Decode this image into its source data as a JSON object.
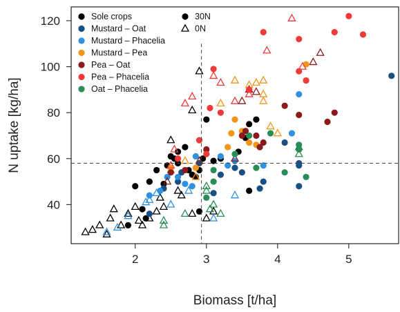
{
  "chart_data": {
    "type": "scatter",
    "title": "",
    "xlabel": "Biomass [t/ha]",
    "ylabel": "N uptake [kg/ha]",
    "xlim": [
      1.1,
      5.7
    ],
    "ylim": [
      23,
      126
    ],
    "xticks": [
      2,
      3,
      4,
      5
    ],
    "yticks": [
      40,
      60,
      80,
      100,
      120
    ],
    "grid": false,
    "legend_position": "top-left",
    "reference_lines": {
      "x": 2.93,
      "y": 58,
      "style": "dashed"
    },
    "marker_legend": [
      {
        "name": "30N",
        "marker": "filled-circle"
      },
      {
        "name": "0N",
        "marker": "open-triangle"
      }
    ],
    "series": [
      {
        "name": "Sole crops",
        "color": "#000000",
        "points_30N": [
          [
            2,
            48
          ],
          [
            2.3,
            55
          ],
          [
            2.4,
            49
          ],
          [
            2.45,
            57
          ],
          [
            2.5,
            61
          ],
          [
            2.55,
            60
          ],
          [
            2.6,
            63
          ],
          [
            2.7,
            65
          ],
          [
            2.75,
            55
          ],
          [
            2.8,
            53
          ],
          [
            2.85,
            52
          ],
          [
            2.9,
            55
          ],
          [
            2.95,
            60
          ],
          [
            3,
            77
          ],
          [
            3.1,
            59
          ],
          [
            3.2,
            60
          ],
          [
            3.45,
            63
          ],
          [
            3.55,
            69
          ],
          [
            3.6,
            75
          ],
          [
            3.7,
            77
          ],
          [
            2.2,
            50
          ],
          [
            2.6,
            58
          ],
          [
            2.9,
            37
          ],
          [
            3.6,
            46
          ],
          [
            1.9,
            31
          ],
          [
            2.1,
            38
          ],
          [
            2.15,
            34
          ]
        ],
        "points_0N": [
          [
            1.3,
            28
          ],
          [
            1.4,
            29
          ],
          [
            1.5,
            31
          ],
          [
            1.6,
            27
          ],
          [
            1.65,
            34
          ],
          [
            1.7,
            38
          ],
          [
            1.8,
            31
          ],
          [
            1.9,
            36
          ],
          [
            2,
            39
          ],
          [
            2.05,
            33
          ],
          [
            2.1,
            31
          ],
          [
            2.2,
            34
          ],
          [
            2.3,
            37
          ],
          [
            2.35,
            43
          ],
          [
            2.4,
            39
          ],
          [
            2.5,
            68
          ],
          [
            2.6,
            46
          ],
          [
            2.65,
            44
          ],
          [
            2.8,
            36
          ],
          [
            2.8,
            81
          ],
          [
            2.9,
            98
          ],
          [
            3,
            34
          ],
          [
            3.1,
            37
          ]
        ]
      },
      {
        "name": "Mustard – Oat",
        "color": "#1a4f85",
        "points_30N": [
          [
            2.2,
            36
          ],
          [
            2.4,
            47
          ],
          [
            2.6,
            50
          ],
          [
            2.9,
            58
          ],
          [
            3.1,
            45
          ],
          [
            3.2,
            53
          ],
          [
            3.4,
            56
          ],
          [
            3.75,
            47
          ],
          [
            3.8,
            50
          ],
          [
            4.1,
            67
          ],
          [
            4.3,
            57
          ],
          [
            4.3,
            58
          ],
          [
            4.3,
            48
          ],
          [
            5.6,
            96
          ],
          [
            2.65,
            54
          ],
          [
            3.5,
            54
          ]
        ],
        "points_0N": []
      },
      {
        "name": "Mustard – Phacelia",
        "color": "#2f92e0",
        "points_30N": [
          [
            2.2,
            44
          ],
          [
            2.35,
            46
          ],
          [
            2.45,
            52
          ],
          [
            2.6,
            52
          ],
          [
            2.7,
            49
          ],
          [
            2.8,
            48
          ],
          [
            2.85,
            61
          ],
          [
            3.2,
            61
          ],
          [
            3.3,
            57
          ],
          [
            3.4,
            59
          ],
          [
            3.8,
            57
          ],
          [
            4.2,
            71
          ],
          [
            4.3,
            88
          ]
        ],
        "points_0N": [
          [
            1.6,
            28
          ],
          [
            1.75,
            30
          ],
          [
            1.9,
            35
          ],
          [
            2.15,
            41
          ],
          [
            2.2,
            42
          ],
          [
            2.3,
            45
          ],
          [
            2.5,
            40
          ],
          [
            2.75,
            46
          ],
          [
            3.1,
            34
          ],
          [
            3.4,
            44
          ]
        ]
      },
      {
        "name": "Mustard – Pea",
        "color": "#f39519",
        "points_30N": [
          [
            2.5,
            56
          ],
          [
            2.85,
            56
          ],
          [
            3.3,
            65
          ],
          [
            3.35,
            71
          ],
          [
            3.4,
            77
          ],
          [
            3.5,
            72
          ],
          [
            3.6,
            67
          ],
          [
            3.7,
            66
          ],
          [
            4.4,
            101
          ]
        ],
        "points_0N": [
          [
            2.5,
            55
          ],
          [
            2.7,
            59
          ],
          [
            2.85,
            52
          ],
          [
            3.2,
            84
          ],
          [
            3.4,
            94
          ],
          [
            3.6,
            92
          ],
          [
            3.7,
            93
          ],
          [
            3.8,
            88
          ],
          [
            3.8,
            94
          ],
          [
            3.8,
            85
          ],
          [
            3.9,
            74
          ],
          [
            4,
            71
          ]
        ]
      },
      {
        "name": "Pea – Oat",
        "color": "#8b1a1a",
        "points_30N": [
          [
            2.5,
            54
          ],
          [
            2.7,
            55
          ],
          [
            3,
            64
          ],
          [
            3.5,
            70
          ],
          [
            3.7,
            70
          ],
          [
            3.75,
            65
          ],
          [
            3.8,
            67
          ],
          [
            4.1,
            83
          ],
          [
            4.3,
            79
          ],
          [
            4.7,
            76
          ],
          [
            4.8,
            80
          ],
          [
            3.55,
            72
          ]
        ],
        "points_0N": [
          [
            2.45,
            50
          ],
          [
            2.9,
            59
          ],
          [
            3.4,
            60
          ],
          [
            3.5,
            85
          ],
          [
            3.6,
            90
          ],
          [
            3.7,
            89
          ],
          [
            4.5,
            102
          ],
          [
            4.6,
            106
          ]
        ]
      },
      {
        "name": "Pea – Phacelia",
        "color": "#f03a3a",
        "points_30N": [
          [
            2.6,
            60
          ],
          [
            2.9,
            68
          ],
          [
            3,
            62
          ],
          [
            3.1,
            99
          ],
          [
            3.2,
            80
          ],
          [
            3.6,
            90
          ],
          [
            3.8,
            115
          ],
          [
            4.3,
            112
          ],
          [
            4.3,
            98
          ],
          [
            4.4,
            94
          ],
          [
            4.8,
            115
          ],
          [
            5,
            122
          ],
          [
            5.2,
            114
          ],
          [
            3.05,
            82
          ]
        ],
        "points_0N": [
          [
            2.5,
            57
          ],
          [
            2.7,
            84
          ],
          [
            2.8,
            87
          ],
          [
            3.1,
            96
          ],
          [
            3.2,
            93
          ],
          [
            3.4,
            85
          ],
          [
            3.6,
            88
          ],
          [
            3.85,
            107
          ],
          [
            4.2,
            121
          ],
          [
            4.35,
            100
          ],
          [
            2.55,
            64
          ]
        ]
      },
      {
        "name": "Oat – Phacelia",
        "color": "#2a8c57",
        "points_30N": [
          [
            3,
            43
          ],
          [
            3.1,
            50
          ],
          [
            3.1,
            55
          ],
          [
            3.4,
            62
          ],
          [
            3.6,
            70
          ],
          [
            3.7,
            56
          ],
          [
            3.9,
            71
          ],
          [
            4.1,
            54
          ],
          [
            4.3,
            64
          ],
          [
            4.3,
            66
          ],
          [
            4.4,
            52
          ]
        ],
        "points_0N": [
          [
            2.4,
            33
          ],
          [
            2.4,
            31
          ],
          [
            2.7,
            36
          ],
          [
            3,
            46
          ],
          [
            3,
            48
          ],
          [
            3.05,
            38
          ],
          [
            3.1,
            40
          ],
          [
            3.2,
            36
          ],
          [
            4.3,
            62
          ],
          [
            4.3,
            65
          ]
        ]
      }
    ]
  }
}
